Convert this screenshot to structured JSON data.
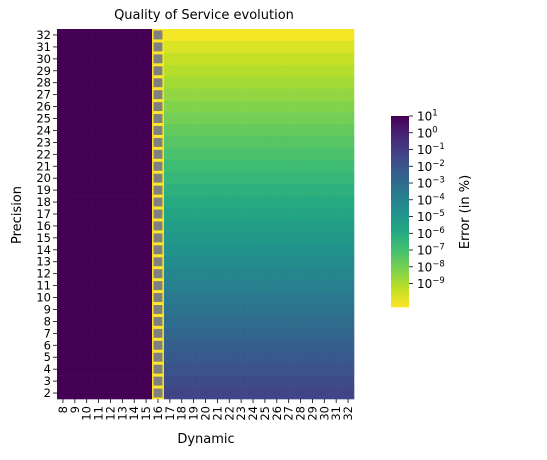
{
  "chart_data": {
    "type": "heatmap",
    "title": "Quality of Service evolution",
    "xlabel": "Dynamic",
    "ylabel": "Precision",
    "x_categories": [
      "8",
      "9",
      "10",
      "11",
      "12",
      "13",
      "14",
      "15",
      "16",
      "17",
      "18",
      "19",
      "20",
      "21",
      "22",
      "23",
      "24",
      "25",
      "26",
      "27",
      "28",
      "29",
      "30",
      "31",
      "32"
    ],
    "y_categories": [
      "32",
      "31",
      "30",
      "29",
      "28",
      "27",
      "26",
      "25",
      "24",
      "23",
      "22",
      "21",
      "20",
      "19",
      "18",
      "17",
      "16",
      "15",
      "14",
      "13",
      "12",
      "11",
      "10",
      "9",
      "8",
      "7",
      "6",
      "5",
      "4",
      "3",
      "2"
    ],
    "value_description": "log10 of Error (in %)",
    "saturated_columns": [
      "8",
      "9",
      "10",
      "11",
      "12",
      "13",
      "14",
      "15"
    ],
    "saturated_log10_error": 1,
    "masked_column": "16",
    "masked_color": "#808080",
    "log10_error_at_precision_2": -1.3,
    "log10_error_per_precision_step": -0.29,
    "log10_error_top_rows": {
      "31": -9.8,
      "32": -10.2
    },
    "colorbar": {
      "label": "Error (in %)",
      "scale": "log",
      "colormap": "viridis_r",
      "range_log10": [
        -10.4,
        1
      ],
      "tick_exponents": [
        1,
        0,
        -1,
        -2,
        -3,
        -4,
        -5,
        -6,
        -7,
        -8,
        -9
      ],
      "tick_base": "10",
      "placement": "right"
    }
  }
}
